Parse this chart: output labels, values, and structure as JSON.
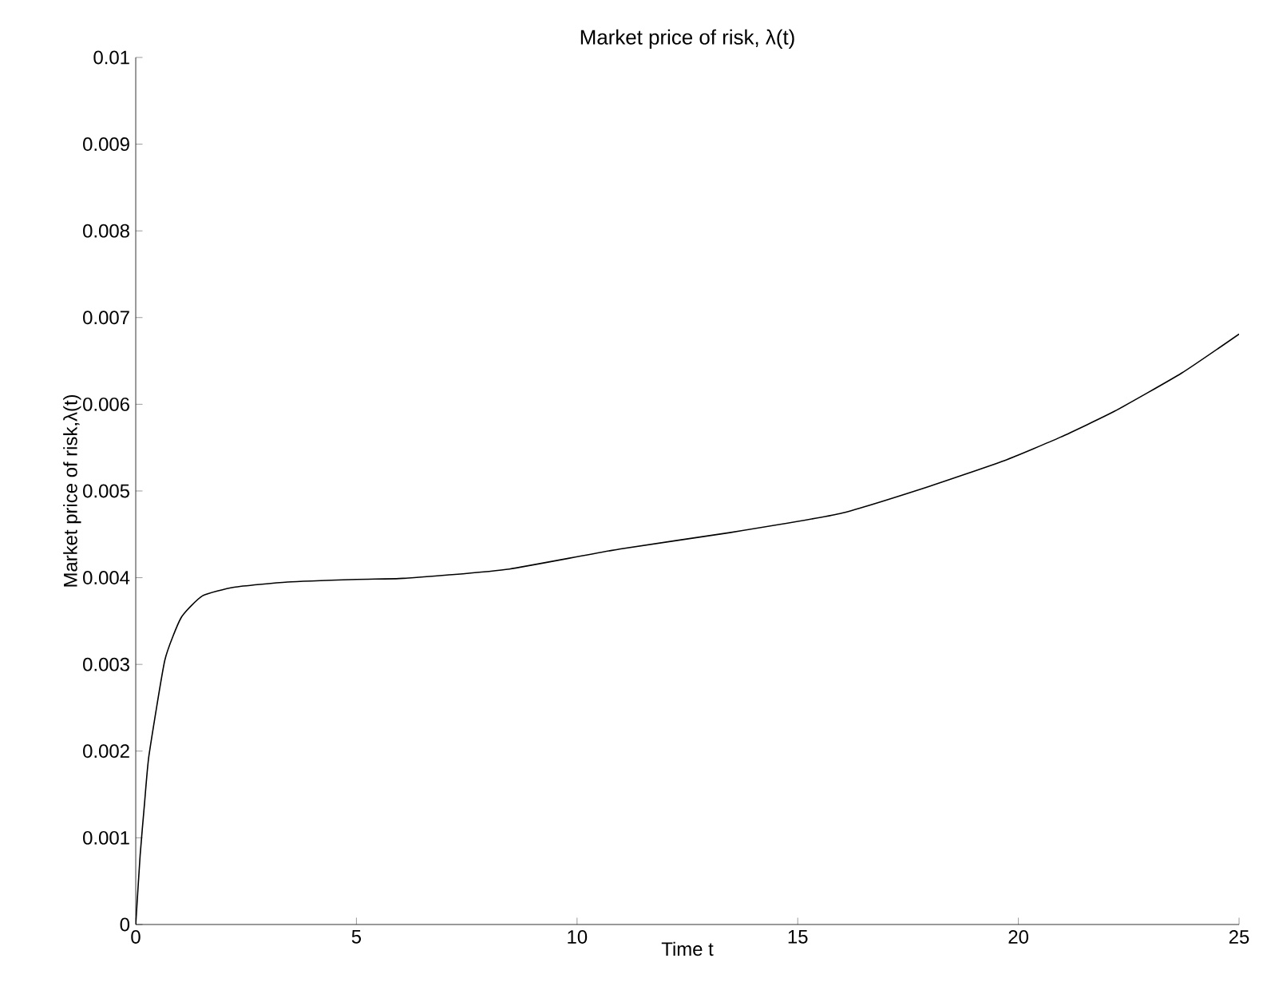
{
  "chart_data": {
    "type": "line",
    "title": "Market price of risk, λ(t)",
    "xlabel": "Time t",
    "ylabel": "Market price of risk,λ(t)",
    "x": [
      0,
      0.1,
      0.2,
      0.3,
      0.66,
      1.03,
      1.51,
      2.23,
      3.44,
      5.0,
      5.97,
      7.05,
      8.47,
      10.96,
      13.46,
      15.96,
      17.84,
      19.68,
      20.95,
      22.18,
      23.7,
      25
    ],
    "series": [
      {
        "color": "#000000",
        "values": [
          0,
          0.0008,
          0.0014,
          0.00195,
          0.00305,
          0.00354,
          0.00379,
          0.00389,
          0.00395,
          0.00398,
          0.00399,
          0.00403,
          0.0041,
          0.00433,
          0.00452,
          0.00474,
          0.00503,
          0.00535,
          0.00562,
          0.00592,
          0.00636,
          0.00681
        ]
      }
    ],
    "xlim": [
      0,
      25
    ],
    "ylim": [
      0,
      0.01
    ],
    "xticks": [
      0,
      5,
      10,
      15,
      20,
      25
    ],
    "yticks": [
      0,
      0.001,
      0.002,
      0.003,
      0.004,
      0.005,
      0.006,
      0.007,
      0.008,
      0.009,
      0.01
    ],
    "grid": false
  }
}
